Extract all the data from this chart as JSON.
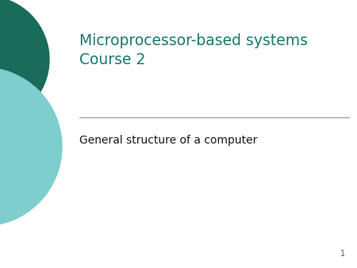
{
  "title_line1": "Microprocessor-based systems",
  "title_line2": "Course 2",
  "subtitle": "General structure of a computer",
  "page_number": "1",
  "title_color": "#1a7a6e",
  "subtitle_color": "#1a1a1a",
  "page_number_color": "#555555",
  "background_color": "#ffffff",
  "circle_dark_color": "#1a6b5a",
  "circle_light_color": "#7ecece",
  "separator_color": "#999999",
  "title_fontsize": 13.5,
  "subtitle_fontsize": 10,
  "page_fontsize": 7
}
